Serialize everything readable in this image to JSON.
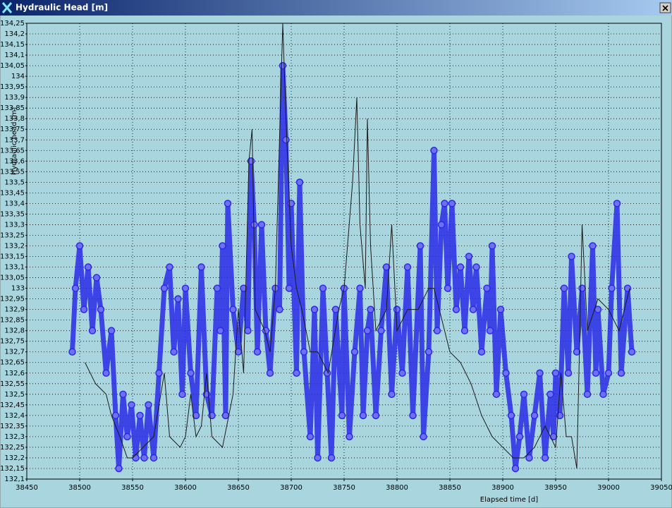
{
  "chart_data": {
    "type": "scatter",
    "title": "Hydraulic Head [m]",
    "y_label": "Hydraulic head [m]",
    "x_label": "Elapsed time [d]",
    "xlim": [
      38450,
      39050
    ],
    "xticks": [
      38450,
      38500,
      38550,
      38600,
      38650,
      38700,
      38750,
      38800,
      38850,
      38900,
      38950,
      39000,
      39050
    ],
    "ylim": [
      132.1,
      134.25
    ],
    "yticks": [
      {
        "value": 132.1,
        "label": "132,1"
      },
      {
        "value": 132.15,
        "label": "132,15"
      },
      {
        "value": 132.2,
        "label": "132,2"
      },
      {
        "value": 132.25,
        "label": "132,25"
      },
      {
        "value": 132.3,
        "label": "132,3"
      },
      {
        "value": 132.35,
        "label": "132,35"
      },
      {
        "value": 132.4,
        "label": "132,4"
      },
      {
        "value": 132.45,
        "label": "132,45"
      },
      {
        "value": 132.5,
        "label": "132,5"
      },
      {
        "value": 132.55,
        "label": "132,55"
      },
      {
        "value": 132.6,
        "label": "132,6"
      },
      {
        "value": 132.65,
        "label": "132,65"
      },
      {
        "value": 132.7,
        "label": "132,7"
      },
      {
        "value": 132.75,
        "label": "132,75"
      },
      {
        "value": 132.8,
        "label": "132,8"
      },
      {
        "value": 132.85,
        "label": "132,85"
      },
      {
        "value": 132.9,
        "label": "132,9"
      },
      {
        "value": 132.95,
        "label": "132,95"
      },
      {
        "value": 133,
        "label": "133"
      },
      {
        "value": 133.05,
        "label": "133,05"
      },
      {
        "value": 133.1,
        "label": "133,1"
      },
      {
        "value": 133.15,
        "label": "133,15"
      },
      {
        "value": 133.2,
        "label": "133,2"
      },
      {
        "value": 133.25,
        "label": "133,25"
      },
      {
        "value": 133.3,
        "label": "133,3"
      },
      {
        "value": 133.35,
        "label": "133,35"
      },
      {
        "value": 133.4,
        "label": "133,4"
      },
      {
        "value": 133.45,
        "label": "133,45"
      },
      {
        "value": 133.5,
        "label": "133,5"
      },
      {
        "value": 133.55,
        "label": "133,55"
      },
      {
        "value": 133.6,
        "label": "133,6"
      },
      {
        "value": 133.65,
        "label": "133,65"
      },
      {
        "value": 133.7,
        "label": "133,7"
      },
      {
        "value": 133.75,
        "label": "133,75"
      },
      {
        "value": 133.8,
        "label": "133,8"
      },
      {
        "value": 133.85,
        "label": "133,85"
      },
      {
        "value": 133.9,
        "label": "133,9"
      },
      {
        "value": 133.95,
        "label": "133,95"
      },
      {
        "value": 134,
        "label": "134"
      },
      {
        "value": 134.05,
        "label": "134,05"
      },
      {
        "value": 134.1,
        "label": "134,1"
      },
      {
        "value": 134.15,
        "label": "134,15"
      },
      {
        "value": 134.2,
        "label": "134,2"
      },
      {
        "value": 134.25,
        "label": "134,25"
      }
    ],
    "grid": true,
    "series": [
      {
        "type": "scatter",
        "color": "#2a2ae6",
        "x": [
          38493,
          38496,
          38500,
          38504,
          38508,
          38512,
          38516,
          38520,
          38525,
          38530,
          38534,
          38537,
          38541,
          38545,
          38549,
          38553,
          38557,
          38561,
          38565,
          38570,
          38575,
          38580,
          38585,
          38589,
          38593,
          38597,
          38600,
          38605,
          38610,
          38615,
          38620,
          38625,
          38630,
          38633,
          38635,
          38638,
          38640,
          38645,
          38650,
          38655,
          38659,
          38662,
          38665,
          38668,
          38672,
          38676,
          38680,
          38685,
          38689,
          38692,
          38695,
          38698,
          38700,
          38705,
          38708,
          38712,
          38718,
          38722,
          38725,
          38730,
          38734,
          38738,
          38742,
          38748,
          38750,
          38755,
          38760,
          38765,
          38768,
          38772,
          38775,
          38780,
          38785,
          38790,
          38795,
          38800,
          38805,
          38810,
          38815,
          38822,
          38825,
          38830,
          38835,
          38838,
          38842,
          38845,
          38848,
          38852,
          38856,
          38860,
          38864,
          38868,
          38872,
          38875,
          38880,
          38885,
          38888,
          38890,
          38894,
          38898,
          38903,
          38908,
          38912,
          38916,
          38920,
          38925,
          38930,
          38935,
          38940,
          38945,
          38948,
          38950,
          38954,
          38958,
          38962,
          38965,
          38970,
          38975,
          38980,
          38985,
          38988,
          38990,
          38995,
          39000,
          39003,
          39008,
          39012,
          39018,
          39022
        ],
        "values": [
          132.7,
          133.0,
          133.2,
          132.9,
          133.1,
          132.8,
          133.05,
          132.9,
          132.6,
          132.8,
          132.4,
          132.15,
          132.5,
          132.3,
          132.45,
          132.2,
          132.4,
          132.2,
          132.45,
          132.2,
          132.6,
          133.0,
          133.1,
          132.7,
          132.95,
          132.5,
          133.0,
          132.6,
          132.4,
          133.1,
          132.5,
          132.4,
          133.0,
          132.8,
          133.2,
          132.4,
          133.4,
          132.9,
          132.7,
          133.0,
          132.8,
          133.6,
          133.3,
          132.7,
          133.3,
          132.8,
          132.6,
          133.0,
          132.9,
          134.05,
          133.7,
          133.0,
          133.4,
          132.6,
          133.5,
          132.7,
          132.3,
          132.9,
          132.2,
          133.0,
          132.6,
          132.2,
          132.9,
          132.4,
          133.0,
          132.3,
          132.7,
          133.0,
          132.4,
          132.8,
          132.9,
          132.4,
          132.8,
          133.1,
          132.5,
          132.9,
          132.6,
          133.1,
          132.4,
          133.2,
          132.3,
          132.7,
          133.65,
          132.8,
          133.3,
          133.4,
          133.0,
          133.4,
          132.9,
          133.1,
          132.8,
          133.15,
          132.9,
          133.1,
          132.7,
          133.0,
          132.8,
          133.2,
          132.5,
          132.9,
          132.6,
          132.4,
          132.15,
          132.3,
          132.5,
          132.2,
          132.4,
          132.6,
          132.2,
          132.5,
          132.3,
          132.6,
          132.4,
          133.0,
          132.6,
          133.15,
          132.7,
          133.0,
          132.5,
          133.2,
          132.6,
          132.9,
          132.5,
          132.6,
          133.0,
          133.4,
          132.6,
          133.0,
          132.7
        ]
      },
      {
        "type": "line",
        "color": "#1a1a1a",
        "x": [
          38505,
          38515,
          38525,
          38530,
          38538,
          38545,
          38550,
          38560,
          38570,
          38575,
          38580,
          38585,
          38595,
          38600,
          38605,
          38610,
          38615,
          38620,
          38625,
          38635,
          38645,
          38650,
          38655,
          38660,
          38663,
          38666,
          38675,
          38680,
          38685,
          38692,
          38695,
          38700,
          38705,
          38710,
          38718,
          38725,
          38735,
          38745,
          38750,
          38758,
          38762,
          38765,
          38770,
          38772,
          38775,
          38780,
          38790,
          38795,
          38800,
          38810,
          38820,
          38830,
          38835,
          38840,
          38850,
          38860,
          38870,
          38880,
          38890,
          38900,
          38910,
          38920,
          38930,
          38940,
          38945,
          38950,
          38955,
          38960,
          38965,
          38970,
          38972,
          38975,
          38980,
          38990,
          39000,
          39010,
          39020
        ],
        "values": [
          132.65,
          132.55,
          132.5,
          132.4,
          132.3,
          132.2,
          132.2,
          132.25,
          132.3,
          132.45,
          132.6,
          132.3,
          132.25,
          132.3,
          132.5,
          132.3,
          132.35,
          132.6,
          132.3,
          132.25,
          132.5,
          132.9,
          132.6,
          133.6,
          133.75,
          132.9,
          132.8,
          132.7,
          133.0,
          134.25,
          133.8,
          133.2,
          133.0,
          132.9,
          132.7,
          132.7,
          132.6,
          132.9,
          133.0,
          133.5,
          133.9,
          133.3,
          133.0,
          133.8,
          133.2,
          132.8,
          132.9,
          133.3,
          132.8,
          132.9,
          132.9,
          133.0,
          133.0,
          132.9,
          132.7,
          132.65,
          132.55,
          132.4,
          132.3,
          132.25,
          132.2,
          132.2,
          132.25,
          132.35,
          132.3,
          132.25,
          132.6,
          132.3,
          132.3,
          132.15,
          132.6,
          133.3,
          132.8,
          132.95,
          132.9,
          132.8,
          133.0
        ]
      }
    ]
  }
}
